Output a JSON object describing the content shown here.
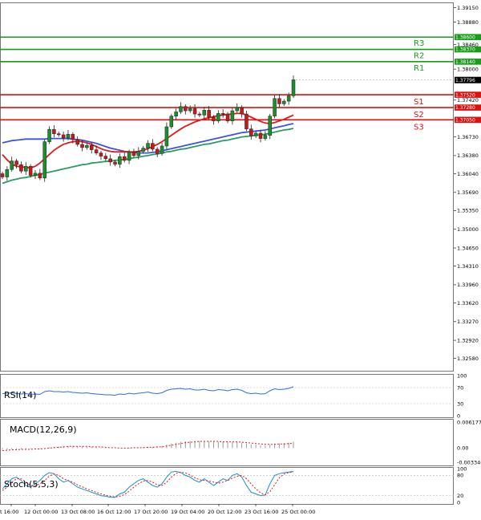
{
  "chart_data": {
    "type": "candlestick",
    "y_ticks": [
      "1.39150",
      "1.38880",
      "1.38460",
      "1.38000",
      "1.37420",
      "1.36730",
      "1.36380",
      "1.36040",
      "1.35690",
      "1.35350",
      "1.35000",
      "1.34650",
      "1.34310",
      "1.33960",
      "1.33620",
      "1.33270",
      "1.32920",
      "1.32580"
    ],
    "y_tick_values": [
      1.3915,
      1.3888,
      1.3846,
      1.38,
      1.3742,
      1.3673,
      1.3638,
      1.3604,
      1.3569,
      1.3535,
      1.35,
      1.3465,
      1.3431,
      1.3396,
      1.3362,
      1.3327,
      1.3292,
      1.3258
    ],
    "y_range": [
      1.3235,
      1.3925
    ],
    "current_price": {
      "label": "1.37796",
      "value": 1.37796
    },
    "levels": [
      {
        "name": "R3",
        "label": "1.38600",
        "value": 1.386,
        "color": "#1a9a1a"
      },
      {
        "name": "R2",
        "label": "1.38370",
        "value": 1.3837,
        "color": "#1a9a1a"
      },
      {
        "name": "R1",
        "label": "1.38140",
        "value": 1.3814,
        "color": "#1a9a1a"
      },
      {
        "name": "S1",
        "label": "1.37520",
        "value": 1.3752,
        "color": "#dd1111"
      },
      {
        "name": "S2",
        "label": "1.37280",
        "value": 1.3728,
        "color": "#dd1111"
      },
      {
        "name": "S3",
        "label": "1.37050",
        "value": 1.3705,
        "color": "#dd1111"
      }
    ],
    "x_labels": [
      "t 16:00",
      "12 Oct 00:00",
      "13 Oct 08:00",
      "16 Oct 12:00",
      "17 Oct 20:00",
      "19 Oct 04:00",
      "20 Oct 12:00",
      "23 Oct 16:00",
      "25 Oct 00:00"
    ],
    "candles_close": [
      1.3598,
      1.3612,
      1.3628,
      1.3621,
      1.3609,
      1.3618,
      1.3601,
      1.3605,
      1.3596,
      1.3664,
      1.3687,
      1.3679,
      1.3677,
      1.3671,
      1.3678,
      1.3668,
      1.3659,
      1.3653,
      1.3657,
      1.3649,
      1.3643,
      1.3637,
      1.3632,
      1.3626,
      1.3622,
      1.3636,
      1.3629,
      1.3645,
      1.3638,
      1.3646,
      1.3652,
      1.3661,
      1.365,
      1.3642,
      1.3656,
      1.3692,
      1.3712,
      1.372,
      1.373,
      1.3722,
      1.3726,
      1.3716,
      1.3714,
      1.3723,
      1.371,
      1.3703,
      1.3717,
      1.3716,
      1.3703,
      1.3722,
      1.3728,
      1.3716,
      1.3688,
      1.3675,
      1.368,
      1.367,
      1.3676,
      1.3712,
      1.3745,
      1.3735,
      1.374,
      1.375,
      1.378
    ],
    "ma_red": [
      1.364,
      1.363,
      1.3622,
      1.3618,
      1.3617,
      1.3616,
      1.3615,
      1.3618,
      1.3624,
      1.3632,
      1.364,
      1.3648,
      1.3654,
      1.3659,
      1.3662,
      1.3664,
      1.3665,
      1.3664,
      1.3662,
      1.3659,
      1.3655,
      1.3651,
      1.3648,
      1.3646,
      1.3645,
      1.3645,
      1.3645,
      1.3645,
      1.3645,
      1.3646,
      1.3648,
      1.3651,
      1.3655,
      1.3659,
      1.3664,
      1.367,
      1.3676,
      1.3682,
      1.3688,
      1.3693,
      1.3697,
      1.3701,
      1.3704,
      1.3707,
      1.3709,
      1.3711,
      1.3713,
      1.3714,
      1.3715,
      1.3716,
      1.3717,
      1.3717,
      1.3714,
      1.371,
      1.3706,
      1.3702,
      1.3699,
      1.3698,
      1.37,
      1.3703,
      1.3706,
      1.371,
      1.3714
    ],
    "ma_blue": [
      1.3662,
      1.3664,
      1.3666,
      1.3667,
      1.3668,
      1.3669,
      1.3669,
      1.3669,
      1.3669,
      1.3669,
      1.367,
      1.367,
      1.367,
      1.367,
      1.367,
      1.3669,
      1.3668,
      1.3667,
      1.3665,
      1.3663,
      1.3661,
      1.3658,
      1.3655,
      1.3652,
      1.365,
      1.3648,
      1.3646,
      1.3645,
      1.3644,
      1.3643,
      1.3643,
      1.3643,
      1.3644,
      1.3645,
      1.3647,
      1.3649,
      1.3651,
      1.3653,
      1.3655,
      1.3657,
      1.3659,
      1.3661,
      1.3663,
      1.3665,
      1.3667,
      1.3669,
      1.3671,
      1.3673,
      1.3675,
      1.3677,
      1.3679,
      1.3681,
      1.3682,
      1.3683,
      1.3684,
      1.3685,
      1.3686,
      1.3688,
      1.369,
      1.3692,
      1.3694,
      1.3696,
      1.3698
    ],
    "ma_green": [
      1.3586,
      1.3589,
      1.3592,
      1.3594,
      1.3596,
      1.3597,
      1.3599,
      1.3601,
      1.3603,
      1.3605,
      1.3607,
      1.3609,
      1.3611,
      1.3613,
      1.3615,
      1.3617,
      1.3619,
      1.3621,
      1.3622,
      1.3624,
      1.3625,
      1.3626,
      1.3627,
      1.3628,
      1.3629,
      1.363,
      1.3631,
      1.3632,
      1.3634,
      1.3635,
      1.3637,
      1.3638,
      1.364,
      1.3641,
      1.3643,
      1.3645,
      1.3646,
      1.3648,
      1.365,
      1.3651,
      1.3653,
      1.3655,
      1.3657,
      1.3659,
      1.366,
      1.3662,
      1.3664,
      1.3666,
      1.3667,
      1.3669,
      1.3671,
      1.3673,
      1.3674,
      1.3675,
      1.3676,
      1.3677,
      1.3678,
      1.368,
      1.3682,
      1.3684,
      1.3686,
      1.3687,
      1.3689
    ],
    "indicators": {
      "rsi": {
        "label": "RSI(14)",
        "ticks": [
          "100",
          "70",
          "30",
          "0"
        ],
        "tick_values": [
          100,
          70,
          30,
          0
        ],
        "values": [
          55,
          56,
          57,
          55,
          54,
          55,
          53,
          54,
          53,
          60,
          62,
          60,
          60,
          59,
          60,
          58,
          57,
          56,
          57,
          55,
          54,
          53,
          52,
          52,
          51,
          54,
          53,
          56,
          54,
          56,
          57,
          59,
          56,
          55,
          57,
          63,
          66,
          67,
          68,
          66,
          67,
          64,
          64,
          66,
          63,
          62,
          65,
          64,
          62,
          65,
          66,
          63,
          57,
          55,
          56,
          54,
          55,
          62,
          67,
          65,
          66,
          68,
          72
        ]
      },
      "macd": {
        "label": "MACD(12,26,9)",
        "ticks": [
          "0.006177",
          "0.00",
          "-0.003346"
        ],
        "tick_values": [
          0.006177,
          0,
          -0.003346
        ],
        "histogram": [
          -0.0004,
          -0.0004,
          -0.0003,
          -0.0003,
          -0.0003,
          -0.0002,
          -0.0002,
          -0.0002,
          -0.0002,
          0.0,
          0.0002,
          0.0003,
          0.0004,
          0.0004,
          0.0005,
          0.0005,
          0.0004,
          0.0004,
          0.0003,
          0.0003,
          0.0002,
          0.0002,
          0.0001,
          0.0,
          0.0,
          0.0,
          0.0,
          0.0001,
          0.0001,
          0.0001,
          0.0002,
          0.0003,
          0.0003,
          0.0004,
          0.0005,
          0.0008,
          0.0011,
          0.0013,
          0.0015,
          0.0016,
          0.0017,
          0.0017,
          0.0017,
          0.0017,
          0.0016,
          0.0015,
          0.0015,
          0.0015,
          0.0014,
          0.0014,
          0.0014,
          0.0013,
          0.0011,
          0.0009,
          0.0008,
          0.0007,
          0.0006,
          0.0008,
          0.0011,
          0.0011,
          0.0012,
          0.0013,
          0.0015
        ],
        "signal": [
          -0.0006,
          -0.0005,
          -0.0004,
          -0.0004,
          -0.0003,
          -0.0003,
          -0.0003,
          -0.0002,
          -0.0002,
          -0.0001,
          0.0,
          0.0001,
          0.0002,
          0.0003,
          0.0004,
          0.0004,
          0.0004,
          0.0004,
          0.0004,
          0.0003,
          0.0003,
          0.0003,
          0.0002,
          0.0001,
          0.0001,
          0.0,
          0.0,
          0.0,
          0.0001,
          0.0001,
          0.0001,
          0.0002,
          0.0002,
          0.0003,
          0.0003,
          0.0005,
          0.0007,
          0.0009,
          0.0011,
          0.0013,
          0.0014,
          0.0015,
          0.0016,
          0.0016,
          0.0016,
          0.0016,
          0.0016,
          0.0015,
          0.0015,
          0.0015,
          0.0015,
          0.0014,
          0.0013,
          0.0012,
          0.0011,
          0.001,
          0.0009,
          0.0009,
          0.0009,
          0.001,
          0.001,
          0.0011,
          0.0012
        ]
      },
      "stoch": {
        "label": "Stoch(5,5,3)",
        "ticks": [
          "100",
          "80",
          "20",
          "0"
        ],
        "tick_values": [
          100,
          80,
          20,
          0
        ],
        "main": [
          40,
          55,
          70,
          75,
          65,
          50,
          45,
          55,
          65,
          80,
          88,
          85,
          70,
          60,
          65,
          55,
          45,
          40,
          35,
          30,
          25,
          20,
          18,
          15,
          15,
          25,
          30,
          45,
          55,
          65,
          70,
          60,
          50,
          45,
          55,
          75,
          90,
          92,
          88,
          80,
          75,
          65,
          60,
          70,
          60,
          50,
          60,
          70,
          65,
          80,
          85,
          75,
          50,
          30,
          25,
          20,
          22,
          55,
          80,
          85,
          88,
          90,
          92
        ],
        "signal": [
          35,
          45,
          60,
          70,
          70,
          60,
          50,
          50,
          55,
          65,
          78,
          84,
          80,
          70,
          65,
          60,
          52,
          46,
          40,
          35,
          30,
          25,
          21,
          18,
          16,
          18,
          23,
          33,
          45,
          55,
          63,
          65,
          60,
          52,
          50,
          60,
          75,
          86,
          90,
          87,
          81,
          73,
          67,
          65,
          63,
          60,
          57,
          60,
          65,
          72,
          77,
          80,
          70,
          55,
          40,
          28,
          22,
          32,
          52,
          73,
          84,
          88,
          90
        ]
      }
    }
  }
}
